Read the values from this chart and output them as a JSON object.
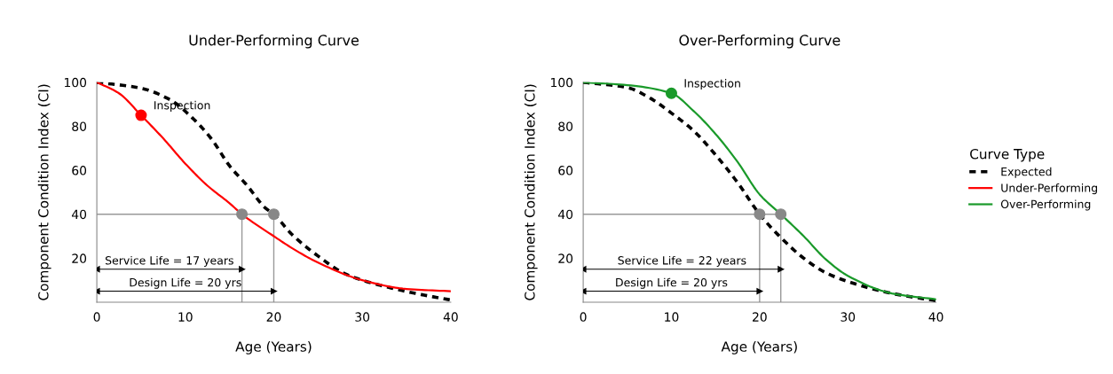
{
  "chart_data": [
    {
      "type": "line",
      "title": "Under-Performing Curve",
      "xlabel": "Age (Years)",
      "ylabel": "Component Condition Index (CI)",
      "xlim": [
        0,
        40
      ],
      "ylim": [
        0,
        100
      ],
      "xticks": [
        0,
        10,
        20,
        30,
        40
      ],
      "yticks": [
        20,
        40,
        60,
        80,
        100
      ],
      "grid": false,
      "legend": "right",
      "legend_title": "Curve Type",
      "series": [
        {
          "name": "Expected",
          "color": "#000000",
          "line_style": "dashed",
          "x": [
            0,
            5,
            8.3,
            11,
            13,
            15,
            17,
            19,
            20,
            22,
            25,
            28,
            30,
            33,
            36,
            40
          ],
          "values": [
            100,
            97.3,
            92,
            83,
            74,
            62,
            53,
            43,
            40,
            31,
            21,
            13,
            10,
            6.7,
            4,
            1
          ]
        },
        {
          "name": "Under-Performing",
          "color": "#ff0000",
          "x": [
            0,
            2.5,
            5,
            7.5,
            10,
            12.5,
            15,
            16.4,
            20,
            22.5,
            25,
            30,
            35,
            40
          ],
          "values": [
            100,
            95,
            85,
            74.5,
            63,
            53,
            45,
            40,
            30,
            23.5,
            18,
            10,
            6,
            5
          ]
        },
        {
          "type": "line",
          "color": "#999999",
          "x": [
            0,
            20
          ],
          "values": [
            40,
            40
          ]
        },
        {
          "type": "line",
          "color": "#999999",
          "x": [
            16.4,
            16.4
          ],
          "values": [
            0,
            40
          ]
        },
        {
          "type": "line",
          "color": "#999999",
          "x": [
            20,
            20
          ],
          "values": [
            0,
            40
          ]
        },
        {
          "type": "scatter",
          "color": "#888888",
          "marker": "circle",
          "x": [
            16.4,
            20
          ],
          "values": [
            40,
            40
          ]
        },
        {
          "type": "scatter",
          "color": "#ff0000",
          "marker": "circle",
          "x": [
            5
          ],
          "values": [
            85
          ]
        },
        {
          "type": "line",
          "marker": "triangle",
          "color": "#000000",
          "x": [
            0,
            16.4
          ],
          "values": [
            15,
            15
          ]
        },
        {
          "type": "line",
          "marker": "triangle",
          "color": "#000000",
          "x": [
            0,
            20
          ],
          "values": [
            5,
            5
          ]
        }
      ],
      "annotations": [
        {
          "text": "Inspection",
          "x": 5,
          "y": 85
        },
        "Service Life = 17 years",
        "Design Life = 20 yrs"
      ]
    },
    {
      "type": "line",
      "title": "Over-Performing Curve",
      "xlabel": "Age (Years)",
      "ylabel": "Component Condition Index (CI)",
      "xlim": [
        0,
        40
      ],
      "ylim": [
        0,
        100
      ],
      "xticks": [
        0,
        10,
        20,
        30,
        40
      ],
      "yticks": [
        20,
        40,
        60,
        80,
        100
      ],
      "grid": false,
      "legend": "right",
      "series": [
        {
          "name": "Expected",
          "color": "#000000",
          "line_style": "dashed",
          "x": [
            0,
            5,
            7.5,
            10,
            12.5,
            15,
            17.5,
            20,
            22.5,
            25,
            27.5,
            30,
            35,
            40
          ],
          "values": [
            100,
            97.6,
            93,
            86,
            78,
            67,
            54.4,
            40,
            29,
            20,
            13.4,
            9.4,
            4,
            0.7
          ]
        },
        {
          "name": "Over-Performing",
          "color": "#1a9a2a",
          "x": [
            0,
            5,
            10,
            12.5,
            15,
            17.5,
            20,
            22.4,
            25,
            27.5,
            30,
            35,
            40
          ],
          "values": [
            100,
            98.7,
            95,
            87,
            76.5,
            63.8,
            49,
            40,
            30,
            19.5,
            12,
            4,
            1.3
          ]
        },
        {
          "type": "line",
          "color": "#999999",
          "x": [
            0,
            22.4
          ],
          "values": [
            40,
            40
          ]
        },
        {
          "type": "line",
          "color": "#999999",
          "x": [
            20,
            20
          ],
          "values": [
            0,
            40
          ]
        },
        {
          "type": "line",
          "color": "#999999",
          "x": [
            22.4,
            22.4
          ],
          "values": [
            0,
            40
          ]
        },
        {
          "type": "scatter",
          "color": "#888888",
          "marker": "circle",
          "x": [
            20,
            22.4
          ],
          "values": [
            40,
            40
          ]
        },
        {
          "type": "scatter",
          "color": "#1a9a2a",
          "marker": "circle",
          "x": [
            10
          ],
          "values": [
            95
          ]
        },
        {
          "type": "line",
          "marker": "triangle",
          "color": "#000000",
          "x": [
            0,
            22.4
          ],
          "values": [
            15,
            15
          ]
        },
        {
          "type": "line",
          "marker": "triangle",
          "color": "#000000",
          "x": [
            0,
            20
          ],
          "values": [
            5,
            5
          ]
        }
      ],
      "annotations": [
        {
          "text": "Inspection",
          "x": 10,
          "y": 95
        },
        "Service Life = 22 years",
        "Design Life = 20 yrs"
      ]
    }
  ]
}
